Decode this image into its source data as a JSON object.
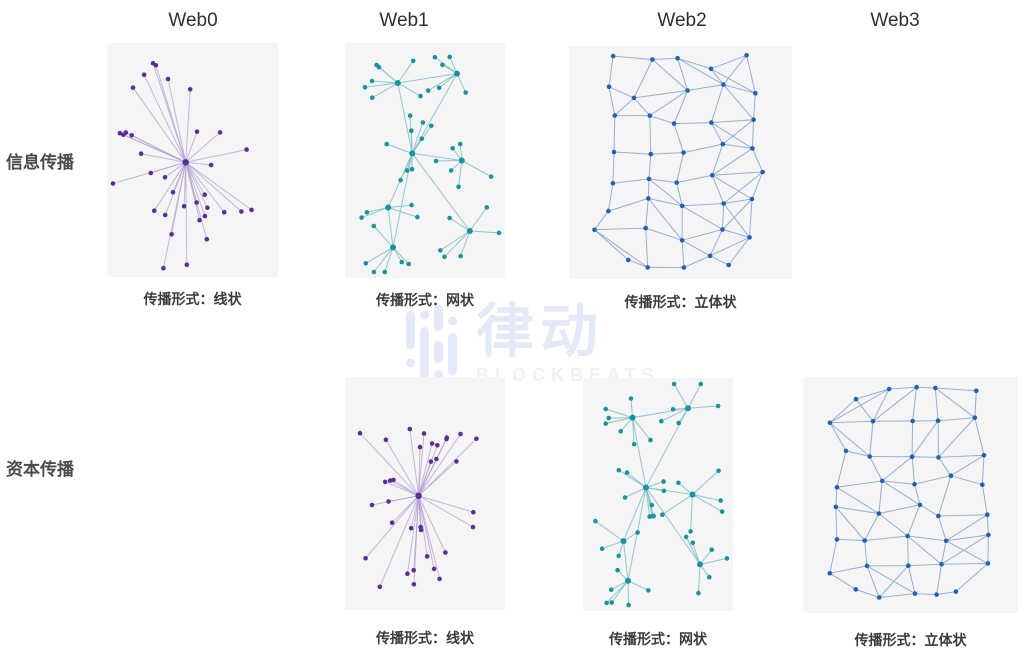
{
  "figure": {
    "type": "network-diagram-matrix",
    "description_columns": [
      "Web0",
      "Web1",
      "Web2",
      "Web3"
    ],
    "description_rows": [
      "信息传播",
      "资本传播"
    ]
  },
  "headers": [
    {
      "label": "Web0"
    },
    {
      "label": "Web1"
    },
    {
      "label": "Web2"
    },
    {
      "label": "Web3"
    }
  ],
  "row_labels": [
    {
      "label": "信息传播"
    },
    {
      "label": "资本传播"
    }
  ],
  "cells": [
    {
      "row": "信息传播",
      "column": "Web0",
      "graph_type": "star",
      "caption": "传播形式：线状",
      "node_color": "#5c2e91",
      "edge_color": "#b1a0d2",
      "seed": 7
    },
    {
      "row": "信息传播",
      "column": "Web1",
      "graph_type": "clusters",
      "caption": "传播形式：网状",
      "node_color": "#17949e",
      "edge_color": "#84c0c5",
      "seed": 11
    },
    {
      "row": "信息传播",
      "column": "Web2",
      "graph_type": "mesh",
      "caption": "传播形式：立体状",
      "node_color": "#2161ae",
      "edge_color": "#8aa6cf",
      "seed": 23
    },
    {
      "row": "资本传播",
      "column": "Web1",
      "graph_type": "star",
      "caption": "传播形式：线状",
      "node_color": "#5c2e91",
      "edge_color": "#b1a0d2",
      "seed": 41
    },
    {
      "row": "资本传播",
      "column": "Web2",
      "graph_type": "clusters",
      "caption": "传播形式：网状",
      "node_color": "#17949e",
      "edge_color": "#84c0c5",
      "seed": 57
    },
    {
      "row": "资本传播",
      "column": "Web3",
      "graph_type": "mesh",
      "caption": "传播形式：立体状",
      "node_color": "#2161ae",
      "edge_color": "#8aa6cf",
      "seed": 73
    }
  ],
  "watermark": {
    "cn": "律动",
    "en": "BLOCKBEATS",
    "color": "#e4e9f7",
    "color_light": "#edf1fa"
  },
  "colors": {
    "background": "#ffffff",
    "panel_bg": "#f5f5f6",
    "header_text": "#2f2f2f",
    "row_label_text": "#4a4a4a",
    "caption_text": "#3b3b3b"
  }
}
